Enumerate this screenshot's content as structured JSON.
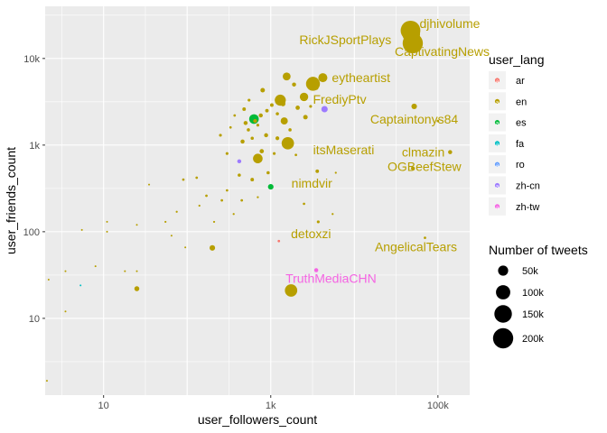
{
  "chart_data": {
    "type": "scatter",
    "xlabel": "user_followers_count",
    "ylabel": "user_friends_count",
    "x_scale": "log10",
    "y_scale": "log10",
    "xlim": [
      2,
      240000
    ],
    "ylim": [
      1.3,
      40000
    ],
    "x_ticks": [
      {
        "value": 10,
        "label": "10"
      },
      {
        "value": 1000,
        "label": "1k"
      },
      {
        "value": 100000,
        "label": "100k"
      }
    ],
    "y_ticks": [
      {
        "value": 10,
        "label": "10"
      },
      {
        "value": 100,
        "label": "100"
      },
      {
        "value": 1000,
        "label": "1k"
      },
      {
        "value": 10000,
        "label": "10k"
      }
    ],
    "grid": true,
    "legend_placement": "right",
    "color_legend": {
      "title": "user_lang",
      "entries": [
        {
          "label": "ar",
          "color": "#F8766D"
        },
        {
          "label": "en",
          "color": "#B79F00"
        },
        {
          "label": "es",
          "color": "#00BA38"
        },
        {
          "label": "fa",
          "color": "#00BFC4"
        },
        {
          "label": "ro",
          "color": "#619CFF"
        },
        {
          "label": "zh-cn",
          "color": "#9D7BFF"
        },
        {
          "label": "zh-tw",
          "color": "#F564E3"
        }
      ]
    },
    "size_legend": {
      "title": "Number of tweets",
      "entries": [
        {
          "label": "50k",
          "value": 50000
        },
        {
          "label": "100k",
          "value": 100000
        },
        {
          "label": "150k",
          "value": 150000
        },
        {
          "label": "200k",
          "value": 200000
        }
      ]
    },
    "labeled_points": [
      {
        "label": "djhivolume",
        "x": 47000,
        "y": 21000,
        "lang": "en",
        "tweets": 190000
      },
      {
        "label": "RickJSportPlays",
        "x": 48000,
        "y": 19000,
        "lang": "en",
        "tweets": 150000
      },
      {
        "label": "CaptivatingNews",
        "x": 50000,
        "y": 15000,
        "lang": "en",
        "tweets": 200000
      },
      {
        "label": "eytheartist",
        "x": 4200,
        "y": 6000,
        "lang": "en",
        "tweets": 40000
      },
      {
        "label": "FrediyPtv",
        "x": 3200,
        "y": 5100,
        "lang": "en",
        "tweets": 95000
      },
      {
        "label": "Captaintonys84",
        "x": 52000,
        "y": 2800,
        "lang": "en",
        "tweets": 15000
      },
      {
        "label": "itsMaserati",
        "x": 1600,
        "y": 1050,
        "lang": "en",
        "tweets": 75000
      },
      {
        "label": "clmazin",
        "x": 140000,
        "y": 830,
        "lang": "en",
        "tweets": 8000
      },
      {
        "label": "nimdvir",
        "x": 3600,
        "y": 500,
        "lang": "en",
        "tweets": 6000
      },
      {
        "label": "OGBeefStew",
        "x": 50000,
        "y": 540,
        "lang": "en",
        "tweets": 6000
      },
      {
        "label": "detoxzi",
        "x": 3700,
        "y": 130,
        "lang": "en",
        "tweets": 4000
      },
      {
        "label": "AngelicalTears",
        "x": 70000,
        "y": 85,
        "lang": "en",
        "tweets": 3000
      },
      {
        "label": "TruthMediaCHN",
        "x": 3500,
        "y": 36,
        "lang": "zh-tw",
        "tweets": 8000
      }
    ],
    "points": [
      {
        "x": 1750,
        "y": 21,
        "lang": "en",
        "tweets": 75000
      },
      {
        "x": 1250,
        "y": 78,
        "lang": "ar",
        "tweets": 3000
      },
      {
        "x": 630,
        "y": 2000,
        "lang": "es",
        "tweets": 45000
      },
      {
        "x": 1000,
        "y": 330,
        "lang": "es",
        "tweets": 15000
      },
      {
        "x": 4400,
        "y": 2600,
        "lang": "zh-cn",
        "tweets": 20000
      },
      {
        "x": 420,
        "y": 650,
        "lang": "zh-cn",
        "tweets": 8000
      },
      {
        "x": 5.3,
        "y": 24,
        "lang": "fa",
        "tweets": 500
      },
      {
        "x": 25,
        "y": 22,
        "lang": "en",
        "tweets": 12000
      },
      {
        "x": 200,
        "y": 65,
        "lang": "en",
        "tweets": 15000
      },
      {
        "x": 2.1,
        "y": 1.9,
        "lang": "en",
        "tweets": 1000
      },
      {
        "x": 2.2,
        "y": 28,
        "lang": "en",
        "tweets": 500
      },
      {
        "x": 3.5,
        "y": 35,
        "lang": "en",
        "tweets": 500
      },
      {
        "x": 3.5,
        "y": 12,
        "lang": "en",
        "tweets": 500
      },
      {
        "x": 5.5,
        "y": 105,
        "lang": "en",
        "tweets": 500
      },
      {
        "x": 8,
        "y": 40,
        "lang": "en",
        "tweets": 500
      },
      {
        "x": 11,
        "y": 130,
        "lang": "en",
        "tweets": 1000
      },
      {
        "x": 11,
        "y": 100,
        "lang": "en",
        "tweets": 500
      },
      {
        "x": 18,
        "y": 35,
        "lang": "en",
        "tweets": 1000
      },
      {
        "x": 25,
        "y": 35,
        "lang": "en",
        "tweets": 1000
      },
      {
        "x": 25,
        "y": 120,
        "lang": "en",
        "tweets": 500
      },
      {
        "x": 35,
        "y": 350,
        "lang": "en",
        "tweets": 1000
      },
      {
        "x": 55,
        "y": 130,
        "lang": "en",
        "tweets": 2000
      },
      {
        "x": 75,
        "y": 170,
        "lang": "en",
        "tweets": 2000
      },
      {
        "x": 90,
        "y": 400,
        "lang": "en",
        "tweets": 3000
      },
      {
        "x": 65,
        "y": 90,
        "lang": "en",
        "tweets": 1000
      },
      {
        "x": 95,
        "y": 66,
        "lang": "en",
        "tweets": 1000
      },
      {
        "x": 130,
        "y": 420,
        "lang": "en",
        "tweets": 3000
      },
      {
        "x": 170,
        "y": 260,
        "lang": "en",
        "tweets": 3000
      },
      {
        "x": 140,
        "y": 200,
        "lang": "en",
        "tweets": 2000
      },
      {
        "x": 210,
        "y": 130,
        "lang": "en",
        "tweets": 2000
      },
      {
        "x": 260,
        "y": 230,
        "lang": "en",
        "tweets": 3000
      },
      {
        "x": 300,
        "y": 800,
        "lang": "en",
        "tweets": 4000
      },
      {
        "x": 250,
        "y": 1300,
        "lang": "en",
        "tweets": 4000
      },
      {
        "x": 330,
        "y": 1600,
        "lang": "en",
        "tweets": 3000
      },
      {
        "x": 370,
        "y": 2200,
        "lang": "en",
        "tweets": 3000
      },
      {
        "x": 420,
        "y": 450,
        "lang": "en",
        "tweets": 5000
      },
      {
        "x": 460,
        "y": 1100,
        "lang": "en",
        "tweets": 8000
      },
      {
        "x": 480,
        "y": 2600,
        "lang": "en",
        "tweets": 6000
      },
      {
        "x": 540,
        "y": 1500,
        "lang": "en",
        "tweets": 5000
      },
      {
        "x": 550,
        "y": 3300,
        "lang": "en",
        "tweets": 4000
      },
      {
        "x": 600,
        "y": 400,
        "lang": "en",
        "tweets": 6000
      },
      {
        "x": 650,
        "y": 1900,
        "lang": "en",
        "tweets": 7000
      },
      {
        "x": 700,
        "y": 700,
        "lang": "en",
        "tweets": 45000
      },
      {
        "x": 760,
        "y": 2200,
        "lang": "en",
        "tweets": 8000
      },
      {
        "x": 800,
        "y": 4300,
        "lang": "en",
        "tweets": 10000
      },
      {
        "x": 880,
        "y": 1300,
        "lang": "en",
        "tweets": 8000
      },
      {
        "x": 930,
        "y": 480,
        "lang": "en",
        "tweets": 5000
      },
      {
        "x": 1030,
        "y": 2900,
        "lang": "en",
        "tweets": 6000
      },
      {
        "x": 1100,
        "y": 800,
        "lang": "en",
        "tweets": 4000
      },
      {
        "x": 1200,
        "y": 2300,
        "lang": "en",
        "tweets": 5000
      },
      {
        "x": 1300,
        "y": 3300,
        "lang": "en",
        "tweets": 60000
      },
      {
        "x": 1450,
        "y": 1900,
        "lang": "en",
        "tweets": 25000
      },
      {
        "x": 1550,
        "y": 6200,
        "lang": "en",
        "tweets": 30000
      },
      {
        "x": 1900,
        "y": 5000,
        "lang": "en",
        "tweets": 8000
      },
      {
        "x": 2100,
        "y": 2700,
        "lang": "en",
        "tweets": 9000
      },
      {
        "x": 2500,
        "y": 3600,
        "lang": "en",
        "tweets": 35000
      },
      {
        "x": 2600,
        "y": 2100,
        "lang": "en",
        "tweets": 10000
      },
      {
        "x": 3000,
        "y": 5200,
        "lang": "en",
        "tweets": 25000
      },
      {
        "x": 3500,
        "y": 4600,
        "lang": "en",
        "tweets": 10000
      },
      {
        "x": 500,
        "y": 1800,
        "lang": "en",
        "tweets": 8000
      },
      {
        "x": 780,
        "y": 850,
        "lang": "en",
        "tweets": 9000
      },
      {
        "x": 600,
        "y": 1200,
        "lang": "en",
        "tweets": 5000
      },
      {
        "x": 1200,
        "y": 1200,
        "lang": "en",
        "tweets": 7000
      },
      {
        "x": 1400,
        "y": 3000,
        "lang": "en",
        "tweets": 12000
      },
      {
        "x": 900,
        "y": 2500,
        "lang": "en",
        "tweets": 6000
      },
      {
        "x": 700,
        "y": 1700,
        "lang": "en",
        "tweets": 4000
      },
      {
        "x": 1700,
        "y": 1500,
        "lang": "en",
        "tweets": 5000
      },
      {
        "x": 300,
        "y": 300,
        "lang": "en",
        "tweets": 3000
      },
      {
        "x": 450,
        "y": 230,
        "lang": "en",
        "tweets": 3000
      },
      {
        "x": 360,
        "y": 160,
        "lang": "en",
        "tweets": 2000
      },
      {
        "x": 700,
        "y": 250,
        "lang": "en",
        "tweets": 2000
      },
      {
        "x": 6000,
        "y": 480,
        "lang": "en",
        "tweets": 2000
      },
      {
        "x": 2500,
        "y": 210,
        "lang": "en",
        "tweets": 3000
      },
      {
        "x": 5500,
        "y": 160,
        "lang": "en",
        "tweets": 2000
      },
      {
        "x": 100000,
        "y": 1900,
        "lang": "en",
        "tweets": 3000
      },
      {
        "x": 2000,
        "y": 770,
        "lang": "en",
        "tweets": 3000
      },
      {
        "x": 3000,
        "y": 2800,
        "lang": "en",
        "tweets": 4000
      }
    ]
  }
}
